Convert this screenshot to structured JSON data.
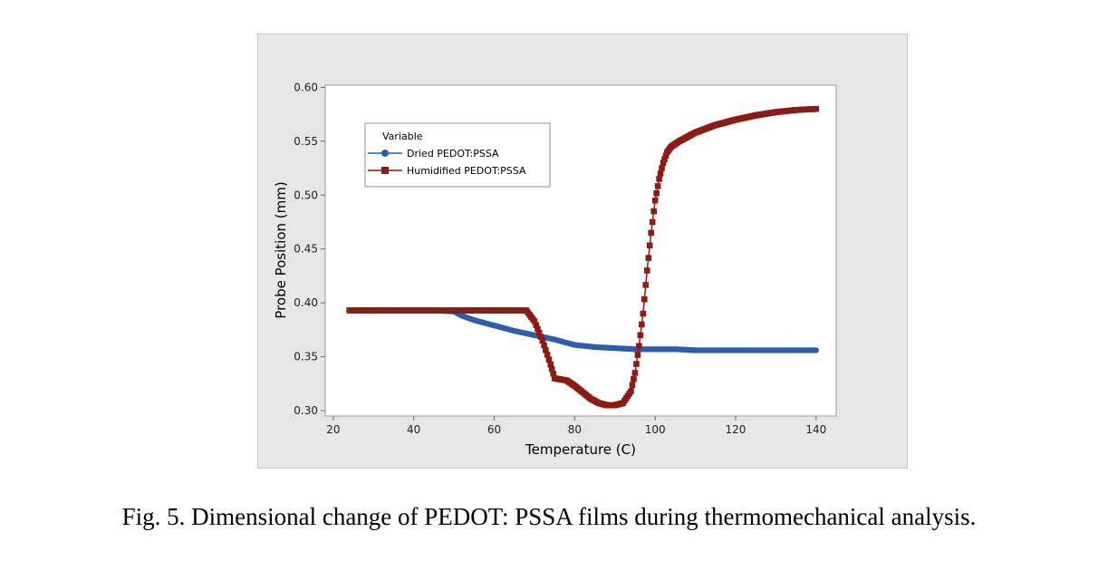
{
  "caption": "Fig. 5. Dimensional change of PEDOT: PSSA films during thermomechanical analysis.",
  "colors": {
    "dried": "#2f5ea8",
    "humidified": "#8b1c15",
    "panel": "#e6e6e6"
  },
  "chart_data": {
    "type": "scatter",
    "title": "",
    "xlabel": "Temperature (C)",
    "ylabel": "Probe Position (mm)",
    "xlim": [
      18,
      145
    ],
    "ylim": [
      0.295,
      0.602
    ],
    "xticks": [
      20,
      40,
      60,
      80,
      100,
      120,
      140
    ],
    "yticks": [
      0.3,
      0.35,
      0.4,
      0.45,
      0.5,
      0.55,
      0.6
    ],
    "xtick_labels": [
      "20",
      "40",
      "60",
      "80",
      "100",
      "120",
      "140"
    ],
    "ytick_labels": [
      "0.30",
      "0.35",
      "0.40",
      "0.45",
      "0.50",
      "0.55",
      "0.60"
    ],
    "grid": false,
    "legend": {
      "title": "Variable",
      "position": "top-left"
    },
    "series": [
      {
        "name": "Dried PEDOT:PSSA",
        "marker": "circle",
        "color": "#2f5ea8",
        "points": [
          [
            25,
            0.393
          ],
          [
            35,
            0.393
          ],
          [
            45,
            0.393
          ],
          [
            50,
            0.392
          ],
          [
            52,
            0.388
          ],
          [
            55,
            0.384
          ],
          [
            60,
            0.379
          ],
          [
            65,
            0.374
          ],
          [
            70,
            0.37
          ],
          [
            75,
            0.366
          ],
          [
            80,
            0.361
          ],
          [
            85,
            0.359
          ],
          [
            90,
            0.358
          ],
          [
            95,
            0.357
          ],
          [
            100,
            0.357
          ],
          [
            105,
            0.357
          ],
          [
            110,
            0.356
          ],
          [
            120,
            0.356
          ],
          [
            130,
            0.356
          ],
          [
            140,
            0.356
          ]
        ]
      },
      {
        "name": "Humidified PEDOT:PSSA",
        "marker": "square",
        "color": "#8b1c15",
        "points": [
          [
            24,
            0.393
          ],
          [
            40,
            0.393
          ],
          [
            55,
            0.393
          ],
          [
            68,
            0.393
          ],
          [
            70,
            0.383
          ],
          [
            72,
            0.365
          ],
          [
            74,
            0.343
          ],
          [
            75,
            0.33
          ],
          [
            78,
            0.328
          ],
          [
            80,
            0.323
          ],
          [
            82,
            0.317
          ],
          [
            84,
            0.311
          ],
          [
            86,
            0.307
          ],
          [
            88,
            0.305
          ],
          [
            90,
            0.305
          ],
          [
            92,
            0.307
          ],
          [
            94,
            0.318
          ],
          [
            95,
            0.335
          ],
          [
            96,
            0.36
          ],
          [
            97,
            0.39
          ],
          [
            98,
            0.43
          ],
          [
            99,
            0.465
          ],
          [
            100,
            0.495
          ],
          [
            101,
            0.515
          ],
          [
            102,
            0.53
          ],
          [
            103,
            0.54
          ],
          [
            104,
            0.545
          ],
          [
            106,
            0.55
          ],
          [
            110,
            0.558
          ],
          [
            115,
            0.565
          ],
          [
            120,
            0.57
          ],
          [
            125,
            0.574
          ],
          [
            130,
            0.577
          ],
          [
            135,
            0.579
          ],
          [
            140,
            0.58
          ]
        ]
      }
    ]
  }
}
